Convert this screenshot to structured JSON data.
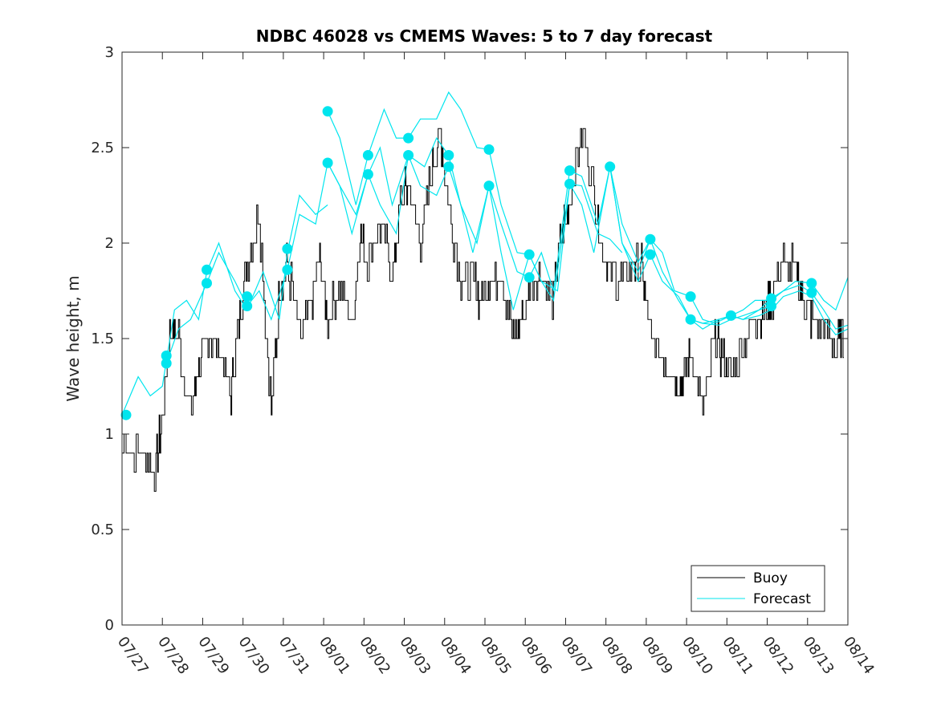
{
  "chart_data": {
    "type": "line",
    "title": "NDBC 46028 vs CMEMS Waves: 5 to 7 day forecast",
    "xlabel": "",
    "ylabel": "Wave height, m",
    "ylim": [
      0,
      3
    ],
    "yticks": [
      0,
      0.5,
      1,
      1.5,
      2,
      2.5,
      3
    ],
    "xlim": [
      "07/27",
      "08/14"
    ],
    "xticks": [
      "07/27",
      "07/28",
      "07/29",
      "07/30",
      "07/31",
      "08/01",
      "08/02",
      "08/03",
      "08/04",
      "08/05",
      "08/06",
      "08/07",
      "08/08",
      "08/09",
      "08/10",
      "08/11",
      "08/12",
      "08/13",
      "08/14"
    ],
    "legend": {
      "placement": "bottom-right",
      "entries": [
        "Buoy",
        "Forecast"
      ]
    },
    "colors": {
      "buoy": "#000000",
      "forecast": "#00e5ee",
      "marker": "#00e5ee"
    },
    "buoy": {
      "name": "Buoy",
      "x": [
        0,
        0.5,
        0.8,
        1.0,
        1.2,
        1.4,
        1.7,
        1.9,
        2.1,
        2.4,
        2.7,
        2.9,
        3.1,
        3.4,
        3.7,
        3.9,
        4.1,
        4.4,
        4.7,
        4.9,
        5.1,
        5.4,
        5.7,
        5.9,
        6.1,
        6.4,
        6.7,
        6.9,
        7.1,
        7.4,
        7.7,
        7.9,
        8.1,
        8.4,
        8.7,
        8.9,
        9.1,
        9.4,
        9.7,
        9.9,
        10.1,
        10.4,
        10.7,
        10.9,
        11.1,
        11.4,
        11.7,
        11.9,
        12.1,
        12.4,
        12.7,
        12.9,
        13.1,
        13.4,
        13.7,
        13.9,
        14.1,
        14.4,
        14.7,
        14.9,
        15.1,
        15.4,
        15.7,
        15.9,
        16.1,
        16.4,
        16.7,
        16.9,
        17.1,
        17.4,
        17.7,
        17.9
      ],
      "values": [
        0.95,
        0.9,
        0.8,
        1.1,
        1.55,
        1.5,
        1.1,
        1.35,
        1.5,
        1.45,
        1.2,
        1.6,
        1.9,
        2.15,
        1.1,
        1.75,
        1.9,
        1.5,
        1.7,
        1.9,
        1.6,
        1.8,
        1.55,
        2.05,
        1.9,
        2.1,
        1.85,
        2.2,
        2.3,
        2.0,
        2.4,
        2.55,
        2.2,
        1.8,
        1.8,
        1.7,
        1.8,
        1.85,
        1.5,
        1.6,
        1.75,
        1.85,
        1.7,
        2.05,
        2.2,
        2.6,
        2.3,
        2.0,
        1.85,
        1.8,
        1.9,
        1.85,
        1.5,
        1.4,
        1.3,
        1.25,
        1.45,
        1.1,
        1.5,
        1.4,
        1.3,
        1.5,
        1.6,
        1.65,
        1.7,
        1.9,
        1.85,
        1.7,
        1.6,
        1.55,
        1.45,
        1.5
      ]
    },
    "forecast_series": [
      {
        "x": [
          0,
          0.4,
          0.7,
          1.0,
          1.3,
          1.6,
          1.9,
          2.1,
          2.4,
          2.8,
          3.1,
          3.5,
          3.9,
          4.1,
          4.4,
          4.8,
          5.1
        ],
        "values": [
          1.1,
          1.3,
          1.2,
          1.25,
          1.65,
          1.7,
          1.6,
          1.85,
          2.0,
          1.75,
          1.65,
          1.85,
          1.6,
          1.95,
          2.25,
          2.15,
          2.2
        ]
      },
      {
        "x": [
          1.1,
          1.4,
          1.7,
          2.1,
          2.4,
          2.8,
          3.1,
          3.4,
          3.7,
          4.1,
          4.4,
          4.8,
          5.1,
          5.4,
          5.7,
          6.1,
          6.4,
          6.7,
          7.1,
          7.5,
          7.8,
          8.1
        ],
        "values": [
          1.37,
          1.55,
          1.6,
          1.79,
          1.95,
          1.8,
          1.67,
          1.75,
          1.6,
          1.86,
          2.15,
          2.1,
          2.42,
          2.3,
          2.05,
          2.36,
          2.5,
          2.2,
          2.46,
          2.4,
          2.55,
          2.46
        ]
      },
      {
        "x": [
          5.1,
          5.4,
          5.8,
          6.1,
          6.5,
          6.8,
          7.1,
          7.4,
          7.8,
          8.1,
          8.4,
          8.8,
          9.1,
          9.4,
          9.8,
          10.1,
          10.4,
          10.8,
          11.1,
          11.4,
          11.8,
          12.1,
          12.4
        ],
        "values": [
          2.69,
          2.55,
          2.2,
          2.46,
          2.7,
          2.55,
          2.55,
          2.65,
          2.65,
          2.79,
          2.7,
          2.5,
          2.49,
          2.2,
          1.95,
          1.94,
          1.8,
          1.75,
          2.31,
          2.3,
          2.05,
          2.02,
          1.95
        ]
      },
      {
        "x": [
          5.1,
          5.4,
          5.8,
          6.1,
          6.4,
          6.8,
          7.1,
          7.4,
          7.8,
          8.1,
          8.4,
          8.8,
          9.1,
          9.4,
          9.8,
          10.1,
          10.4,
          10.7,
          11.1,
          11.4,
          11.8,
          12.1,
          12.4,
          12.8,
          13.1
        ],
        "values": [
          2.42,
          2.3,
          2.15,
          2.36,
          2.2,
          2.05,
          2.46,
          2.3,
          2.25,
          2.4,
          2.2,
          2.0,
          2.3,
          2.1,
          1.85,
          1.82,
          1.95,
          1.75,
          2.38,
          2.35,
          2.1,
          2.4,
          2.0,
          1.8,
          1.94
        ]
      },
      {
        "x": [
          8.1,
          8.4,
          8.7,
          9.1,
          9.4,
          9.7,
          10.1,
          10.4,
          10.7,
          11.1,
          11.4,
          11.7,
          12.1,
          12.4,
          12.8,
          13.1,
          13.4,
          13.8,
          14.1,
          14.4,
          14.8,
          15.1,
          15.4,
          15.8,
          16.1
        ],
        "values": [
          2.46,
          2.2,
          1.95,
          2.3,
          1.95,
          1.65,
          1.94,
          1.8,
          1.7,
          2.31,
          2.2,
          1.95,
          2.4,
          2.0,
          1.85,
          2.02,
          1.85,
          1.7,
          1.6,
          1.55,
          1.6,
          1.62,
          1.6,
          1.65,
          1.67
        ]
      },
      {
        "x": [
          12.1,
          12.4,
          12.8,
          13.1,
          13.4,
          13.7,
          14.1,
          14.4,
          14.7,
          15.1,
          15.4,
          15.7,
          16.1,
          16.4,
          16.7,
          17.1,
          17.4,
          17.7,
          18.0
        ],
        "values": [
          2.4,
          2.1,
          1.9,
          2.02,
          1.95,
          1.75,
          1.72,
          1.6,
          1.58,
          1.62,
          1.65,
          1.7,
          1.7,
          1.75,
          1.8,
          1.79,
          1.7,
          1.65,
          1.82
        ]
      },
      {
        "x": [
          13.1,
          13.4,
          13.8,
          14.1,
          14.4,
          14.8,
          15.1,
          15.4,
          15.8,
          16.1,
          16.4,
          16.8,
          17.1,
          17.4,
          17.7,
          18.0
        ],
        "values": [
          1.94,
          1.8,
          1.72,
          1.6,
          1.58,
          1.57,
          1.6,
          1.62,
          1.65,
          1.71,
          1.75,
          1.78,
          1.74,
          1.65,
          1.55,
          1.57
        ]
      },
      {
        "x": [
          14.1,
          14.4,
          14.8,
          15.1,
          15.4,
          15.8,
          16.1,
          16.4,
          16.8,
          17.1,
          17.4,
          17.7,
          18.0
        ],
        "values": [
          1.6,
          1.58,
          1.6,
          1.62,
          1.6,
          1.62,
          1.65,
          1.72,
          1.75,
          1.72,
          1.6,
          1.52,
          1.55
        ]
      }
    ],
    "forecast_markers": {
      "x": [
        0.1,
        1.1,
        1.1,
        2.1,
        2.1,
        3.1,
        3.1,
        4.1,
        4.1,
        5.1,
        5.1,
        6.1,
        6.1,
        7.1,
        7.1,
        8.1,
        8.1,
        9.1,
        9.1,
        10.1,
        10.1,
        11.1,
        11.1,
        12.1,
        13.1,
        13.1,
        14.1,
        14.1,
        15.1,
        16.1,
        16.1,
        17.1,
        17.1
      ],
      "values": [
        1.1,
        1.41,
        1.37,
        1.86,
        1.79,
        1.72,
        1.67,
        1.97,
        1.86,
        2.69,
        2.42,
        2.46,
        2.36,
        2.55,
        2.46,
        2.46,
        2.4,
        2.49,
        2.3,
        1.94,
        1.82,
        2.38,
        2.31,
        2.4,
        2.02,
        1.94,
        1.72,
        1.6,
        1.62,
        1.71,
        1.67,
        1.79,
        1.74
      ]
    }
  }
}
